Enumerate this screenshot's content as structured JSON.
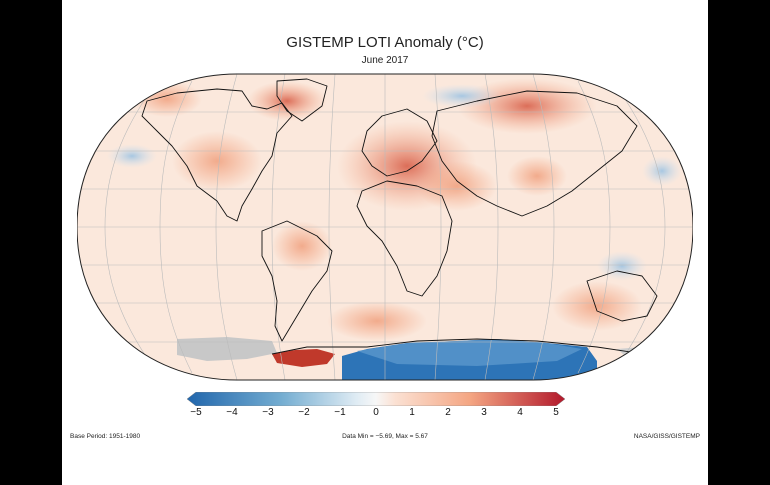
{
  "title": "GISTEMP LOTI Anomaly (°C)",
  "subtitle": "June 2017",
  "colors": {
    "strong_cold": "#2166ac",
    "cold": "#74add1",
    "neutral": "#fbece3",
    "warm": "#f4a582",
    "strong_warm": "#c0392b",
    "no_data": "#c8c8c8"
  },
  "colorbar": {
    "ticks": [
      "−5",
      "−4",
      "−3",
      "−2",
      "−1",
      "0",
      "1",
      "2",
      "3",
      "4",
      "5"
    ]
  },
  "footer": {
    "left": "Base Period: 1951-1980",
    "center": "Data Min = −5.69, Max = 5.67",
    "right": "NASA/GISS/GISTEMP"
  }
}
